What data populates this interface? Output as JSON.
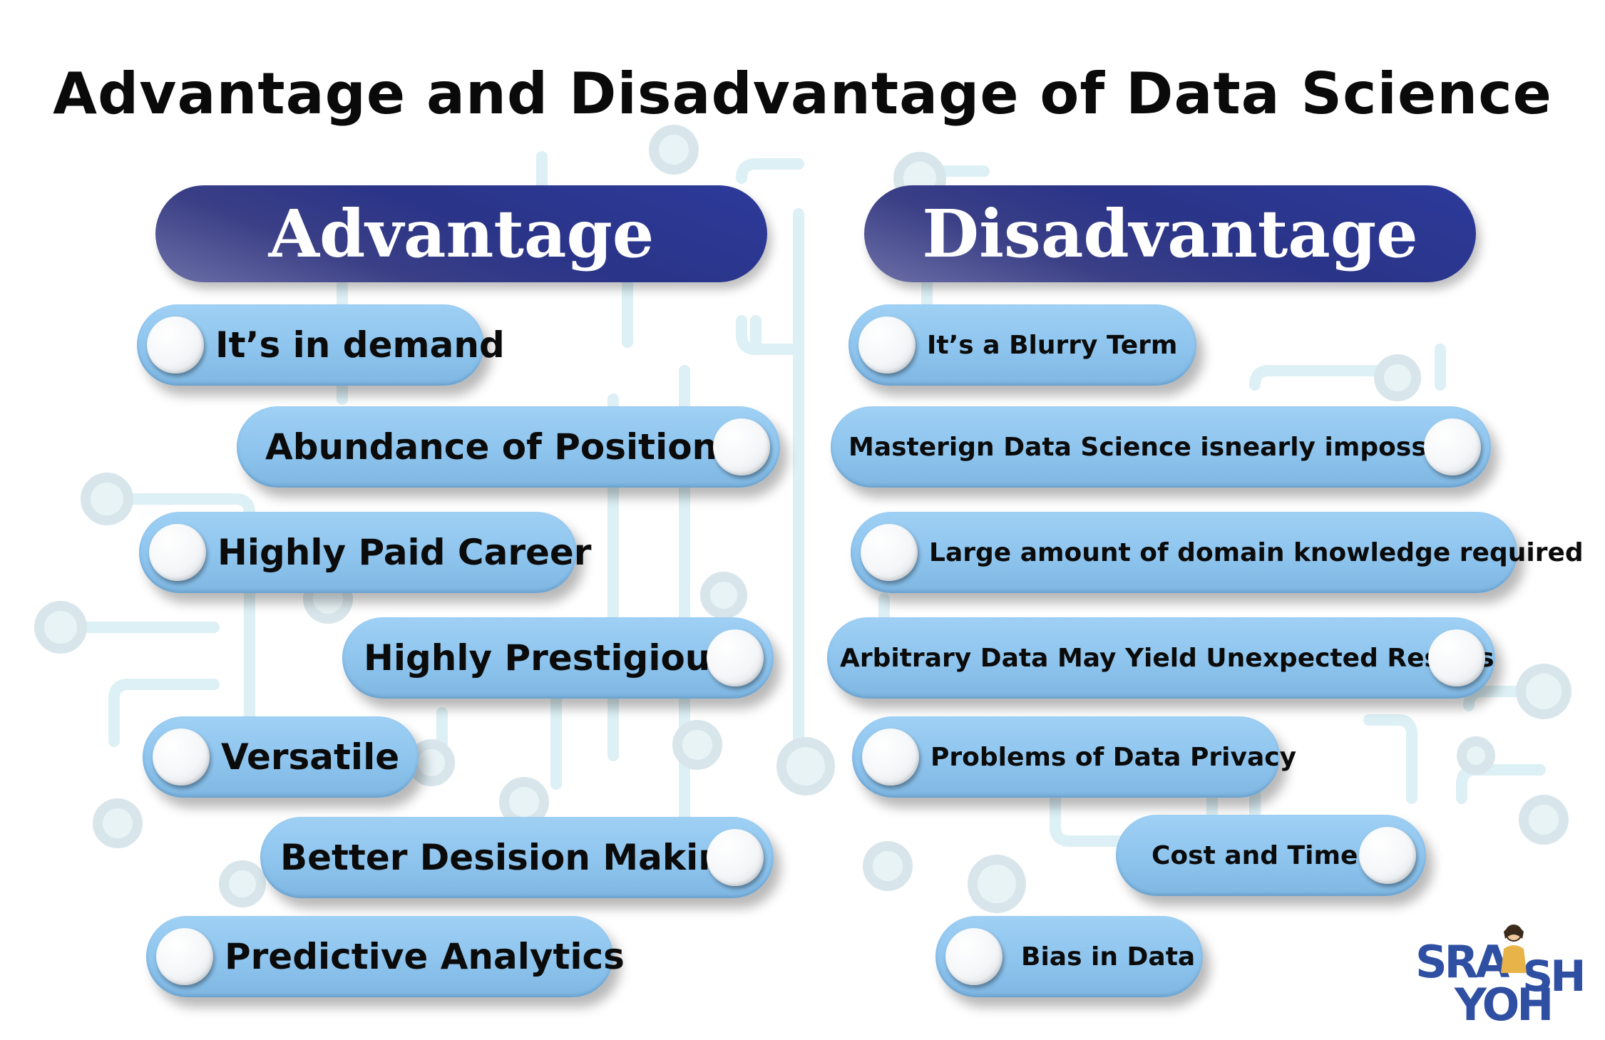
{
  "title": "Advantage and Disadvantage of Data Science",
  "advantage": {
    "header": "Advantage",
    "items": [
      "It’s in demand",
      "Abundance of Positions",
      "Highly Paid Career",
      "Highly Prestigious",
      "Versatile",
      "Better Desision Making",
      "Predictive Analytics"
    ]
  },
  "disadvantage": {
    "header": "Disadvantage",
    "items": [
      "It’s a Blurry Term",
      "Masterign Data Science isnearly impossible",
      "Large amount of domain knowledge required",
      "Arbitrary Data May Yield Unexpected Results",
      "Problems of Data Privacy",
      "Cost and Time",
      "Bias in Data"
    ]
  },
  "logo": {
    "top": "SRA",
    "right": "SH",
    "bottom": "YOH"
  },
  "colors": {
    "header": "#2a3488",
    "pill": "#8cc3ed",
    "circuit": "#ddf1f6",
    "logo": "#2f4fa3"
  }
}
